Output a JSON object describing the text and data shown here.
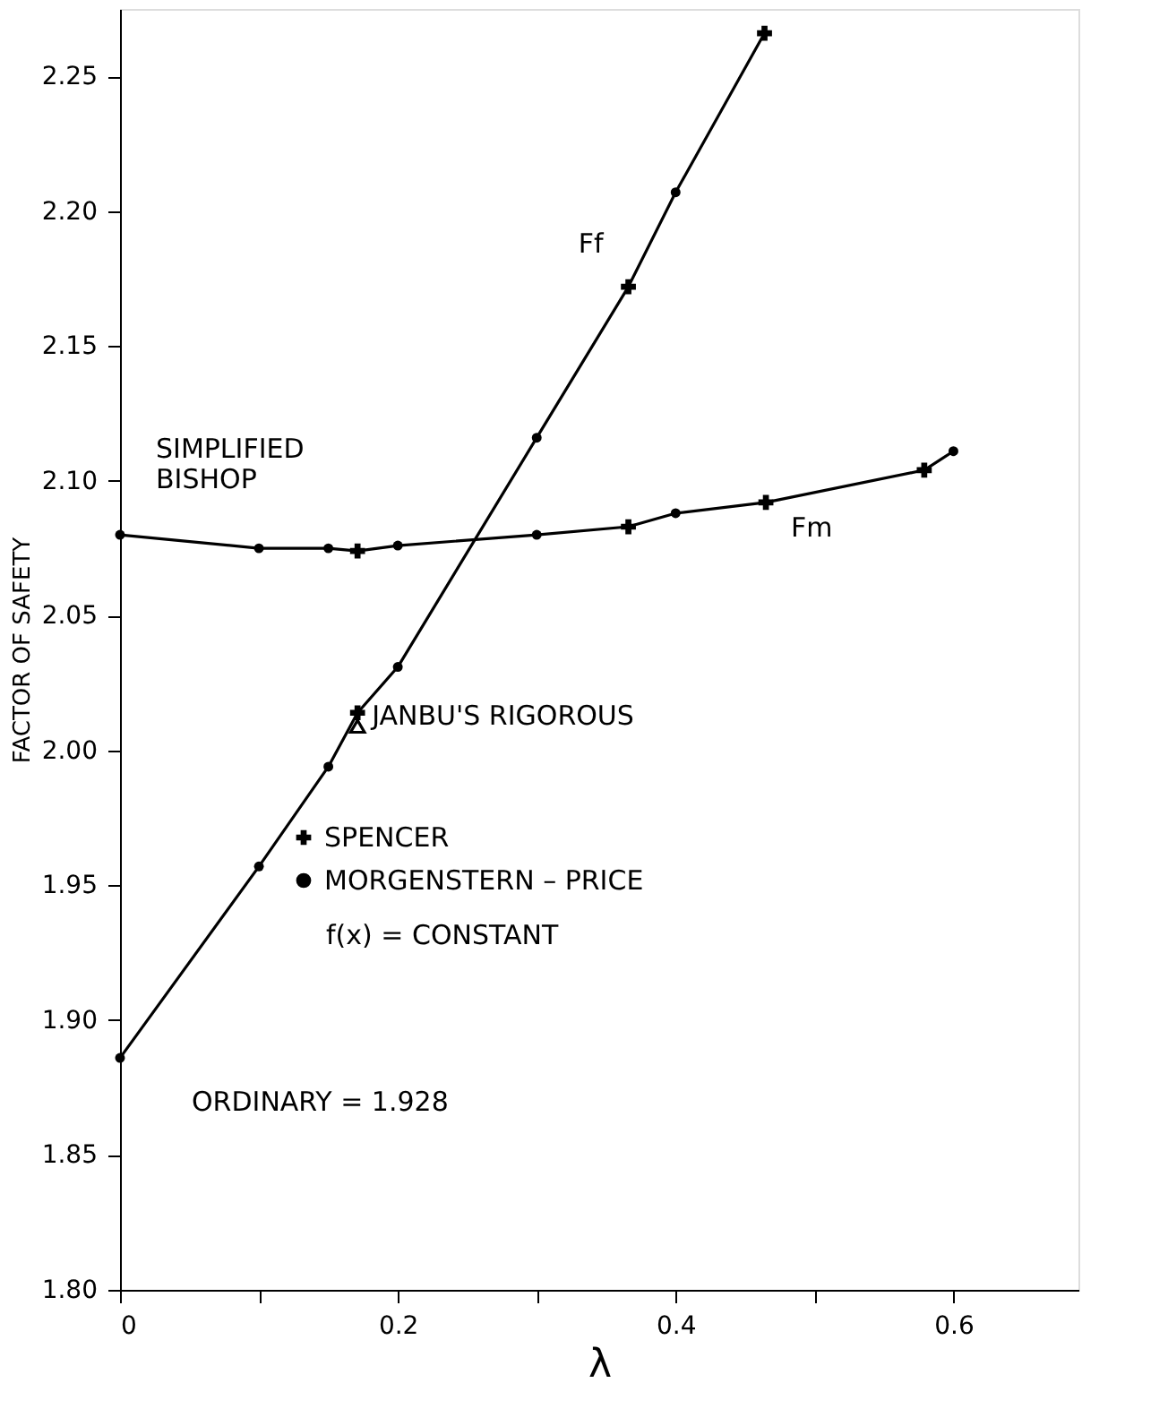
{
  "chart_data": {
    "type": "line",
    "xlabel": "λ",
    "ylabel": "FACTOR OF SAFETY",
    "xlim": [
      0,
      0.69
    ],
    "ylim": [
      1.8,
      2.275
    ],
    "xticks": [
      0,
      {
        "value": 0.1,
        "label": null
      },
      0.2,
      {
        "value": 0.3,
        "label": null
      },
      0.4,
      {
        "value": 0.5,
        "label": null
      },
      0.6
    ],
    "yticks": [
      {
        "value": 1.8,
        "label": "1.80"
      },
      1.85,
      {
        "value": 1.9,
        "label": "1.90"
      },
      1.95,
      {
        "value": 2.0,
        "label": "2.00"
      },
      2.05,
      {
        "value": 2.1,
        "label": "2.10"
      },
      2.15,
      {
        "value": 2.2,
        "label": "2.20"
      },
      2.25
    ],
    "grid": false,
    "legend": "left",
    "line_style": "solid",
    "series": [
      {
        "color": "#000000",
        "marker": "none",
        "x": [
          0,
          0.1,
          0.15,
          0.171,
          0.2,
          0.3,
          0.366,
          0.4,
          0.464
        ],
        "values": [
          1.886,
          1.957,
          1.994,
          2.014,
          2.031,
          2.116,
          2.172,
          2.207,
          2.266
        ]
      },
      {
        "color": "#000000",
        "marker": "none",
        "x": [
          0,
          0.1,
          0.15,
          0.171,
          0.2,
          0.3,
          0.366,
          0.4,
          0.465,
          0.579,
          0.6
        ],
        "values": [
          2.08,
          2.075,
          2.075,
          2.074,
          2.076,
          2.08,
          2.083,
          2.088,
          2.092,
          2.104,
          2.111
        ]
      },
      {
        "type": "scatter",
        "name": "SPENCER",
        "color": "#000000",
        "marker": "cross",
        "x": [
          0.171,
          0.366,
          0.464,
          0.171,
          0.366,
          0.465,
          0.579
        ],
        "values": [
          2.014,
          2.172,
          2.266,
          2.074,
          2.083,
          2.092,
          2.104
        ]
      },
      {
        "type": "scatter",
        "name": "MORGENSTERN – PRICE",
        "color": "#000000",
        "marker": "circle",
        "x": [
          0,
          0.1,
          0.15,
          0.2,
          0.3,
          0.4,
          0,
          0.1,
          0.15,
          0.2,
          0.3,
          0.4,
          0.6
        ],
        "values": [
          1.886,
          1.957,
          1.994,
          2.031,
          2.116,
          2.207,
          2.08,
          2.075,
          2.075,
          2.076,
          2.08,
          2.088,
          2.111
        ]
      },
      {
        "type": "scatter",
        "color": "#000000",
        "marker": "triangle",
        "x": [
          0.171
        ],
        "values": [
          2.009
        ]
      }
    ],
    "annotations": [
      {
        "text": "SIMPLIFIED BISHOP",
        "x": 0,
        "y": 2.08
      },
      {
        "text": "JANBU'S RIGOROUS",
        "x": 0.171,
        "y": 2.009
      },
      {
        "text": "Ff",
        "x": 0.366,
        "y": 2.172
      },
      {
        "text": "Fm",
        "x": 0.465,
        "y": 2.092
      },
      "f(x) = CONSTANT",
      "ORDINARY = 1.928"
    ]
  }
}
